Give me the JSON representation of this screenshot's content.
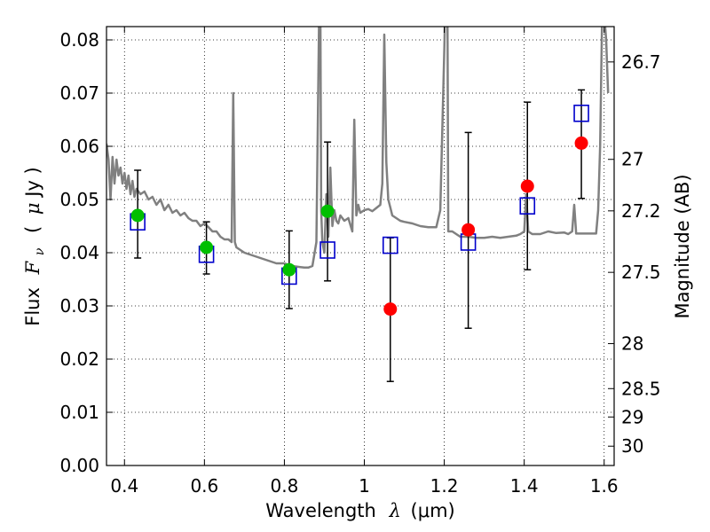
{
  "chart_data": {
    "type": "scatter",
    "xlabel": "Wavelength  λ (μm)",
    "xlabel_parts": {
      "text": "Wavelength",
      "symbol": "λ",
      "unit": "(μm)"
    },
    "ylabel": "Flux  Fν ( μJy )",
    "ylabel_parts": {
      "text": "Flux",
      "symbol": "F",
      "sub": "ν",
      "unit_open": "(",
      "unit_mu": "μ",
      "unit_rest": "Jy )"
    },
    "y2label": "Magnitude (AB)",
    "xlim": [
      0.355,
      1.625
    ],
    "ylim": [
      0.0,
      0.0825
    ],
    "grid": true,
    "x_ticks": [
      0.4,
      0.6,
      0.8,
      1.0,
      1.2,
      1.4,
      1.6
    ],
    "x_tick_labels": [
      "0.4",
      "0.6",
      "0.8",
      "1",
      "1.2",
      "1.4",
      "1.6"
    ],
    "y_ticks": [
      0.0,
      0.01,
      0.02,
      0.03,
      0.04,
      0.05,
      0.06,
      0.07,
      0.08
    ],
    "y_tick_labels": [
      "0.00",
      "0.01",
      "0.02",
      "0.03",
      "0.04",
      "0.05",
      "0.06",
      "0.07",
      "0.08"
    ],
    "y2_ticks": [
      {
        "mag": 26.7,
        "label": "26.7"
      },
      {
        "mag": 27.0,
        "label": "27"
      },
      {
        "mag": 27.2,
        "label": "27.2"
      },
      {
        "mag": 27.5,
        "label": "27.5"
      },
      {
        "mag": 28.0,
        "label": "28"
      },
      {
        "mag": 28.5,
        "label": "28.5"
      },
      {
        "mag": 29.0,
        "label": "29"
      },
      {
        "mag": 30.0,
        "label": "30"
      }
    ],
    "series": [
      {
        "name": "model-spectrum",
        "kind": "line",
        "color": "#808080",
        "x": [
          0.355,
          0.36,
          0.365,
          0.37,
          0.375,
          0.38,
          0.385,
          0.39,
          0.395,
          0.4,
          0.405,
          0.41,
          0.415,
          0.42,
          0.425,
          0.43,
          0.44,
          0.45,
          0.46,
          0.47,
          0.48,
          0.49,
          0.5,
          0.51,
          0.52,
          0.53,
          0.54,
          0.55,
          0.56,
          0.57,
          0.58,
          0.59,
          0.6,
          0.61,
          0.62,
          0.63,
          0.64,
          0.65,
          0.66,
          0.668,
          0.672,
          0.676,
          0.68,
          0.69,
          0.7,
          0.72,
          0.74,
          0.76,
          0.78,
          0.8,
          0.82,
          0.84,
          0.85,
          0.86,
          0.87,
          0.88,
          0.887,
          0.89,
          0.892,
          0.895,
          0.9,
          0.905,
          0.91,
          0.915,
          0.92,
          0.925,
          0.93,
          0.935,
          0.94,
          0.95,
          0.96,
          0.97,
          0.975,
          0.98,
          0.985,
          0.99,
          1.0,
          1.01,
          1.02,
          1.03,
          1.04,
          1.045,
          1.05,
          1.055,
          1.06,
          1.065,
          1.07,
          1.08,
          1.09,
          1.1,
          1.12,
          1.14,
          1.16,
          1.18,
          1.19,
          1.2,
          1.202,
          1.205,
          1.208,
          1.21,
          1.22,
          1.24,
          1.26,
          1.28,
          1.3,
          1.32,
          1.34,
          1.36,
          1.38,
          1.39,
          1.4,
          1.405,
          1.41,
          1.42,
          1.44,
          1.46,
          1.48,
          1.5,
          1.51,
          1.52,
          1.525,
          1.53,
          1.54,
          1.56,
          1.58,
          1.585,
          1.59,
          1.595,
          1.6,
          1.605,
          1.61
        ],
        "y": [
          0.0605,
          0.0575,
          0.05,
          0.058,
          0.053,
          0.0575,
          0.0545,
          0.056,
          0.053,
          0.055,
          0.052,
          0.0545,
          0.051,
          0.0535,
          0.0505,
          0.052,
          0.051,
          0.0515,
          0.05,
          0.0505,
          0.049,
          0.05,
          0.048,
          0.049,
          0.0475,
          0.048,
          0.047,
          0.0475,
          0.0465,
          0.046,
          0.046,
          0.045,
          0.0455,
          0.0448,
          0.044,
          0.044,
          0.043,
          0.0425,
          0.0425,
          0.042,
          0.07,
          0.042,
          0.041,
          0.0405,
          0.04,
          0.0395,
          0.039,
          0.0385,
          0.038,
          0.038,
          0.0375,
          0.0373,
          0.0372,
          0.0372,
          0.0375,
          0.042,
          0.085,
          0.085,
          0.048,
          0.042,
          0.04,
          0.051,
          0.043,
          0.056,
          0.045,
          0.048,
          0.046,
          0.0455,
          0.047,
          0.046,
          0.0465,
          0.044,
          0.065,
          0.047,
          0.049,
          0.0475,
          0.048,
          0.0482,
          0.0478,
          0.0484,
          0.049,
          0.053,
          0.081,
          0.057,
          0.05,
          0.0485,
          0.047,
          0.0465,
          0.046,
          0.0458,
          0.0455,
          0.045,
          0.0448,
          0.0448,
          0.048,
          0.078,
          0.085,
          0.085,
          0.085,
          0.044,
          0.044,
          0.043,
          0.043,
          0.0428,
          0.0428,
          0.043,
          0.0428,
          0.043,
          0.0432,
          0.0435,
          0.044,
          0.051,
          0.044,
          0.0435,
          0.0435,
          0.044,
          0.0437,
          0.0438,
          0.0435,
          0.044,
          0.049,
          0.0436,
          0.0436,
          0.0436,
          0.0436,
          0.048,
          0.06,
          0.085,
          0.085,
          0.08,
          0.07
        ]
      },
      {
        "name": "green-points",
        "kind": "markers",
        "marker": "circle",
        "color": "#00bf00",
        "x": [
          0.433,
          0.605,
          0.812,
          0.908
        ],
        "y": [
          0.047,
          0.041,
          0.0368,
          0.0478
        ]
      },
      {
        "name": "red-points",
        "kind": "markers",
        "marker": "circle",
        "color": "#ff0000",
        "x": [
          1.065,
          1.26,
          1.408,
          1.543
        ],
        "y": [
          0.0294,
          0.0443,
          0.0525,
          0.0606
        ]
      },
      {
        "name": "blue-squares",
        "kind": "markers",
        "marker": "square-open",
        "color": "#0000cc",
        "x": [
          0.433,
          0.605,
          0.812,
          0.908,
          1.065,
          1.26,
          1.408,
          1.543
        ],
        "y": [
          0.0458,
          0.0397,
          0.0356,
          0.0405,
          0.0414,
          0.042,
          0.0488,
          0.0662
        ]
      },
      {
        "name": "error-bars",
        "kind": "errorbar",
        "color": "#000000",
        "x": [
          0.433,
          0.605,
          0.812,
          0.908,
          1.065,
          1.26,
          1.408,
          1.543
        ],
        "low": [
          0.039,
          0.036,
          0.0295,
          0.0347,
          0.0158,
          0.0258,
          0.0368,
          0.0502
        ],
        "high": [
          0.0555,
          0.0458,
          0.0441,
          0.0608,
          0.0428,
          0.0626,
          0.0683,
          0.0706
        ]
      }
    ]
  }
}
